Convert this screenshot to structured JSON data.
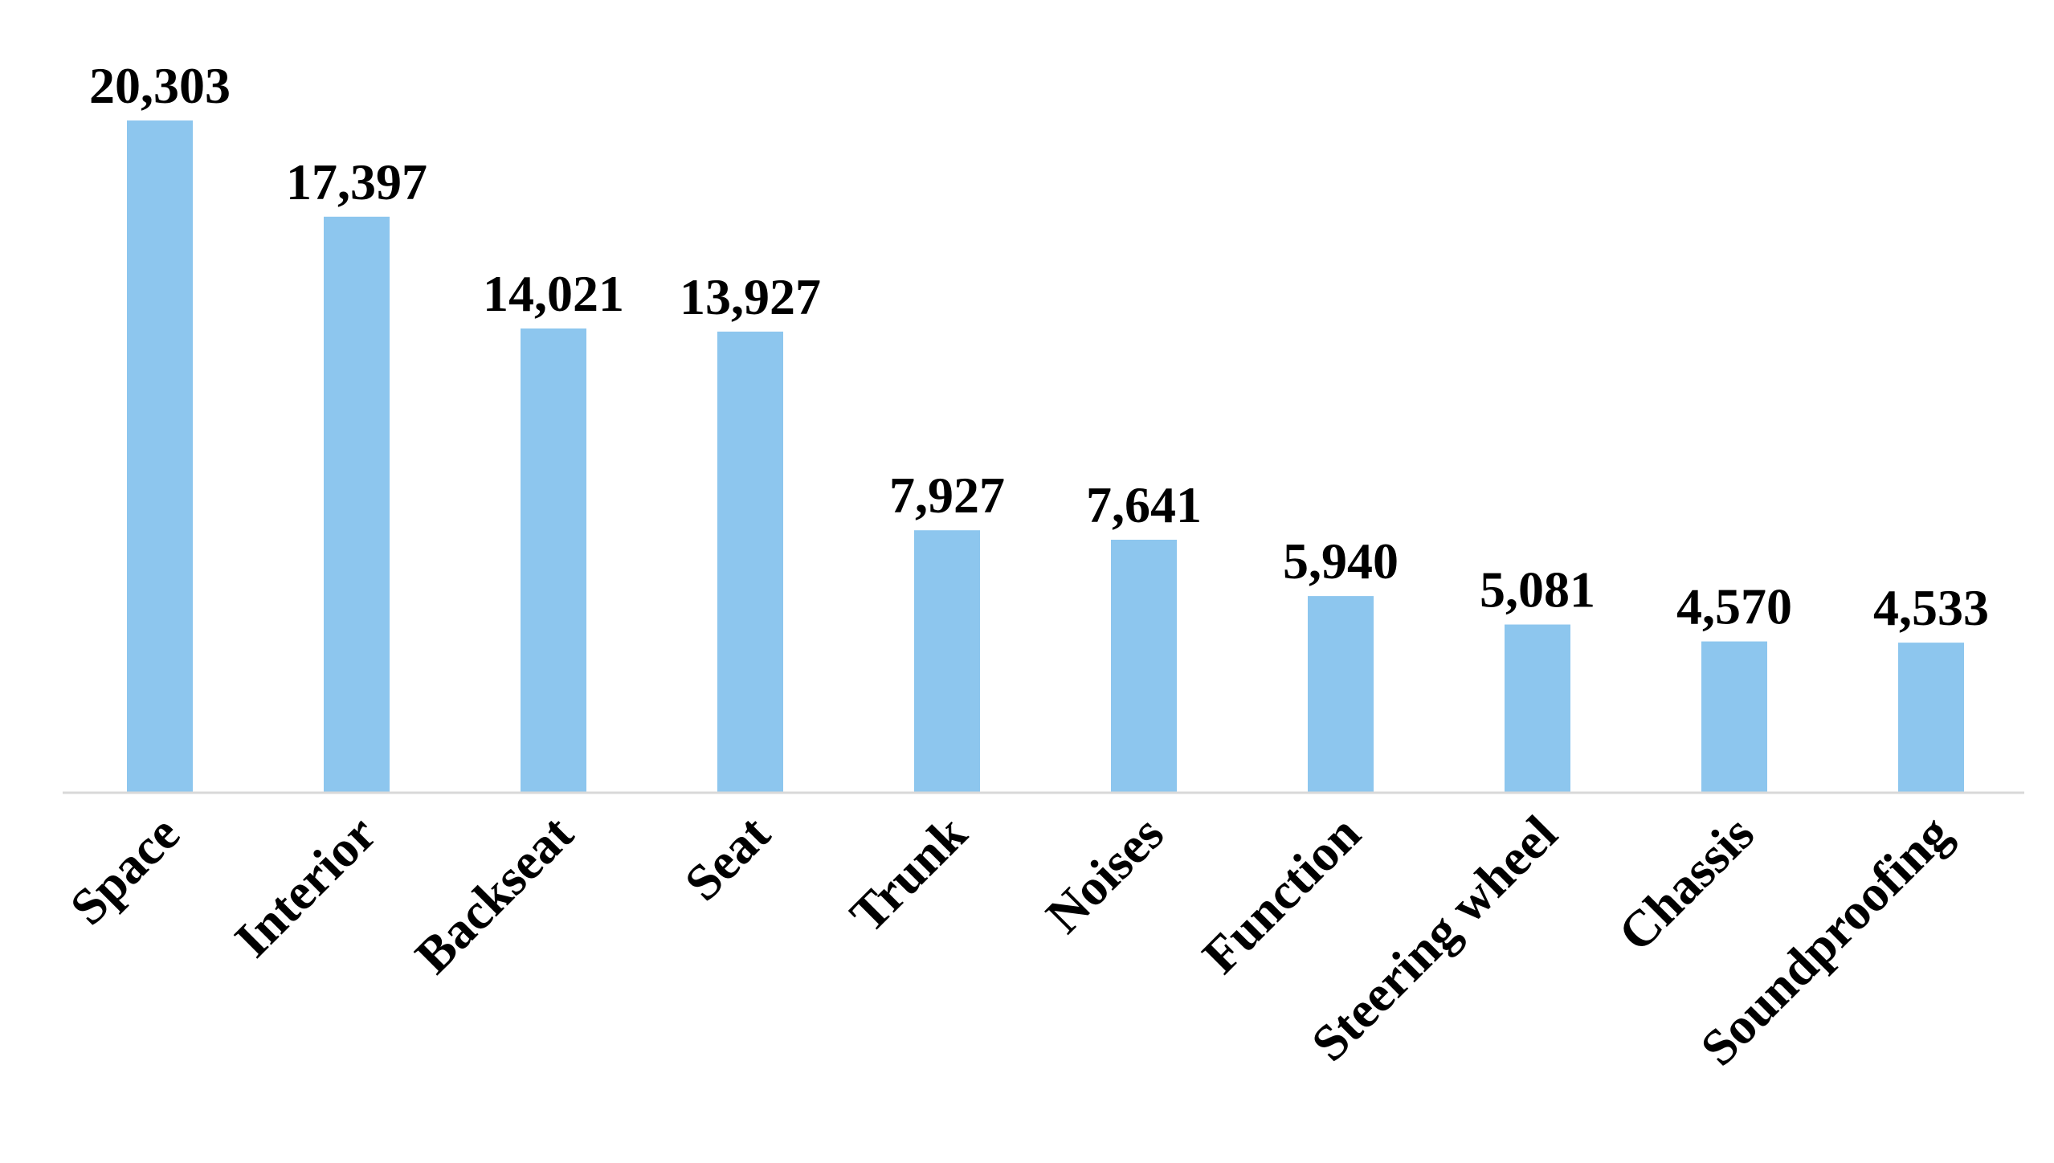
{
  "chart_data": {
    "type": "bar",
    "categories": [
      "Space",
      "Interior",
      "Backseat",
      "Seat",
      "Trunk",
      "Noises",
      "Function",
      "Steering wheel",
      "Chassis",
      "Soundproofing"
    ],
    "values": [
      20303,
      17397,
      14021,
      13927,
      7927,
      7641,
      5940,
      5081,
      4570,
      4533
    ],
    "value_labels": [
      "20,303",
      "17,397",
      "14,021",
      "13,927",
      "7,927",
      "7,641",
      "5,940",
      "5,081",
      "4,570",
      "4,533"
    ],
    "ylim": [
      0,
      20303
    ],
    "grid": false,
    "legend": "none",
    "bar_color": "#8dc6ee",
    "axis_color": "#d9d9d9"
  }
}
